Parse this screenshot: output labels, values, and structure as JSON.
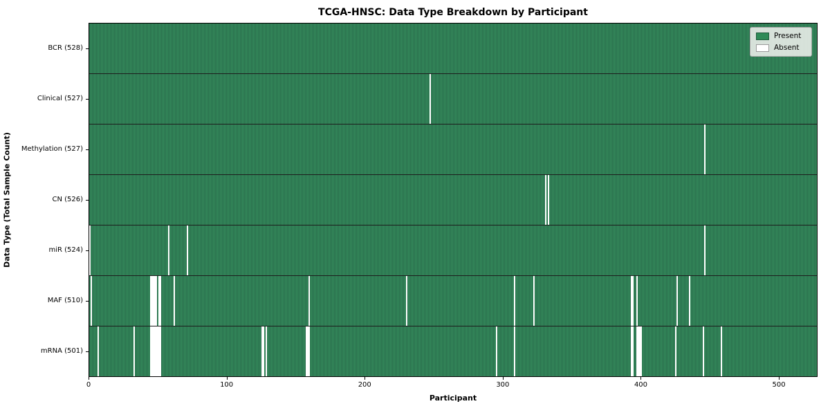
{
  "chart_data": {
    "type": "heatmap",
    "title": "TCGA-HNSC: Data Type Breakdown by Participant",
    "xlabel": "Participant",
    "ylabel": "Data Type (Total Sample Count)",
    "x_ticks": [
      0,
      100,
      200,
      300,
      400,
      500
    ],
    "x_range": [
      0,
      528
    ],
    "n_participants": 528,
    "grid": false,
    "legend_position": "upper right",
    "legend": [
      {
        "label": "Present",
        "color": "#2e8b57"
      },
      {
        "label": "Absent",
        "color": "#ffffff"
      }
    ],
    "rows": [
      {
        "label": "BCR (528)",
        "data_type": "BCR",
        "present_count": 528,
        "absent_participants": []
      },
      {
        "label": "Clinical (527)",
        "data_type": "Clinical",
        "present_count": 527,
        "absent_participants": [
          247
        ]
      },
      {
        "label": "Methylation (527)",
        "data_type": "Methylation",
        "present_count": 527,
        "absent_participants": [
          446
        ]
      },
      {
        "label": "CN (526)",
        "data_type": "CN",
        "present_count": 526,
        "absent_participants": [
          331,
          333
        ]
      },
      {
        "label": "miR (524)",
        "data_type": "miR",
        "present_count": 524,
        "absent_participants": [
          0,
          57,
          71,
          446
        ]
      },
      {
        "label": "MAF (510)",
        "data_type": "MAF",
        "present_count": 510,
        "absent_participants": [
          1,
          44,
          45,
          46,
          47,
          48,
          50,
          51,
          61,
          159,
          230,
          308,
          322,
          393,
          394,
          397,
          426,
          435
        ]
      },
      {
        "label": "mRNA (501)",
        "data_type": "mRNA",
        "present_count": 501,
        "absent_participants": [
          6,
          32,
          44,
          45,
          46,
          47,
          48,
          49,
          50,
          51,
          125,
          126,
          128,
          157,
          158,
          159,
          295,
          308,
          393,
          394,
          397,
          398,
          399,
          400,
          425,
          445,
          458
        ]
      }
    ],
    "colors": {
      "present": "#2e8b57",
      "present_stripe_light": "#38925f",
      "present_stripe_dark": "#27694a",
      "absent": "#ffffff",
      "row_divider": "#1c1c1c",
      "axis": "#000000",
      "legend_bg": "#e5eae5",
      "legend_border": "#a6a6a6",
      "figure_bg": "#ffffff"
    }
  }
}
